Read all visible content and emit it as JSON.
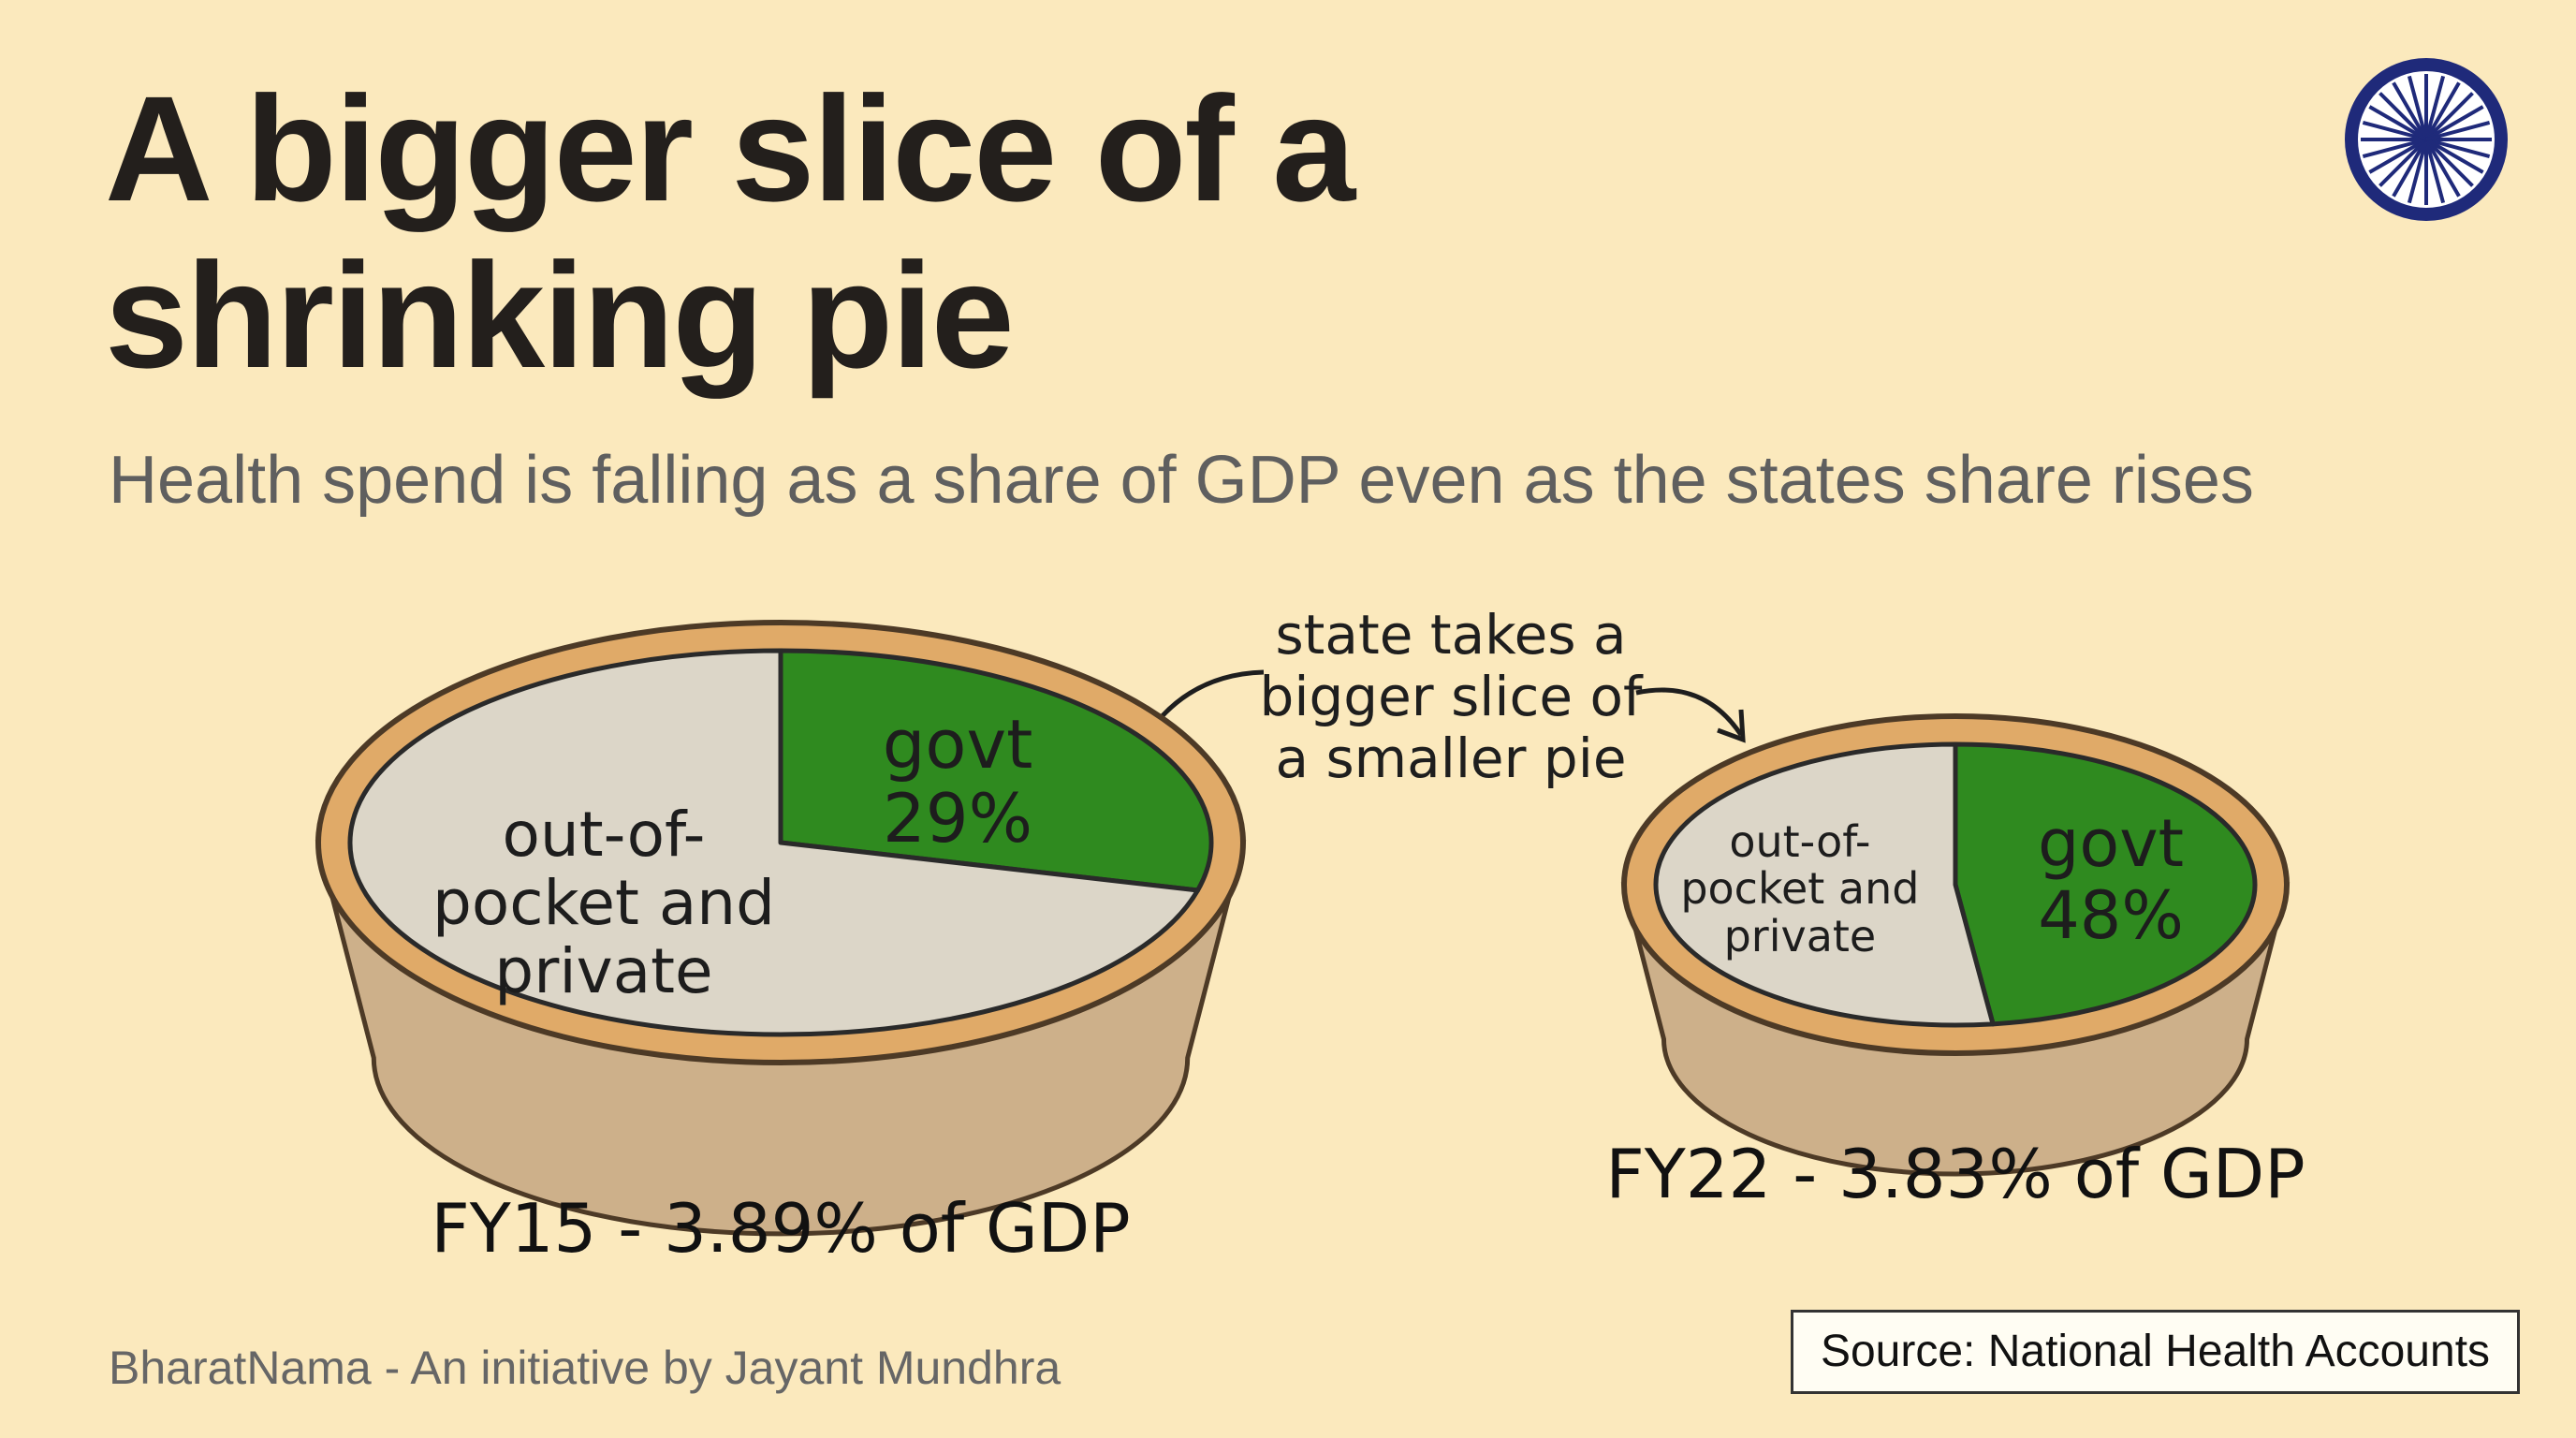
{
  "title": "A bigger slice of a shrinking pie",
  "subtitle": "Health spend is falling as a share of GDP even as the states share rises",
  "annotation": "state takes a bigger slice of a smaller pie",
  "footer": "BharatNama - An initiative by Jayant Mundhra",
  "source": "Source: National Health Accounts",
  "chart_data": [
    {
      "type": "pie",
      "title": "FY15 - 3.89% of GDP",
      "categories": [
        "govt",
        "out-of-pocket and private"
      ],
      "values": [
        29,
        71
      ],
      "value_labels": [
        "29%",
        null
      ],
      "colors": [
        "#2f8a1f",
        "#dcd6c8"
      ]
    },
    {
      "type": "pie",
      "title": "FY22 - 3.83% of GDP",
      "categories": [
        "govt",
        "out-of-pocket and private"
      ],
      "values": [
        48,
        52
      ],
      "value_labels": [
        "48%",
        null
      ],
      "colors": [
        "#2f8a1f",
        "#dcd6c8"
      ]
    }
  ]
}
